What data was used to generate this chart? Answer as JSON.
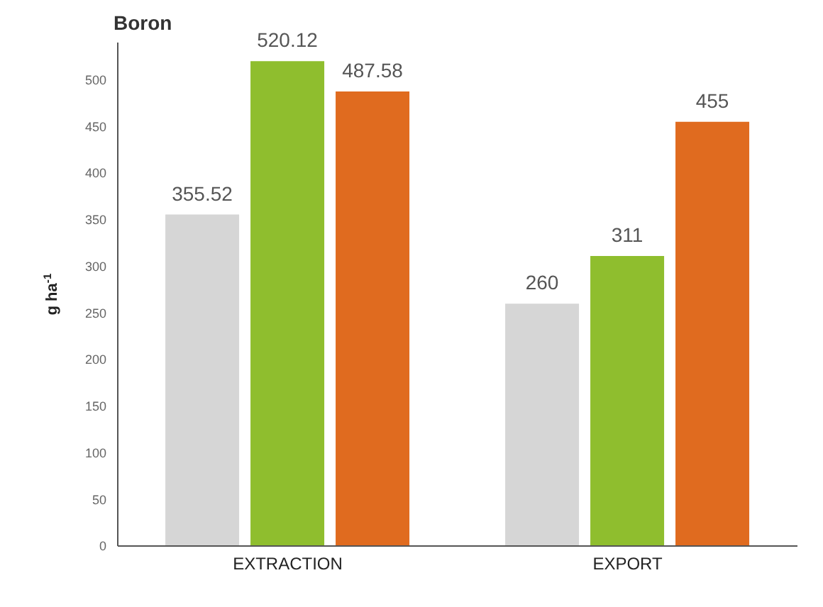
{
  "chart_data": {
    "type": "bar",
    "title": "Boron",
    "ylabel": "g ha$^{-1}$",
    "categories": [
      "EXTRACTION",
      "EXPORT"
    ],
    "series": [
      {
        "color": "#d6d6d6",
        "values": [
          355.52,
          260
        ]
      },
      {
        "color": "#8fbe2e",
        "values": [
          520.12,
          311
        ]
      },
      {
        "color": "#e06b1f",
        "values": [
          487.58,
          455
        ]
      }
    ],
    "ylim": [
      0,
      540
    ],
    "yticks": [
      0,
      50,
      100,
      150,
      200,
      250,
      300,
      350,
      400,
      450,
      500
    ],
    "grid": false,
    "legend": false,
    "data_labels": true
  }
}
